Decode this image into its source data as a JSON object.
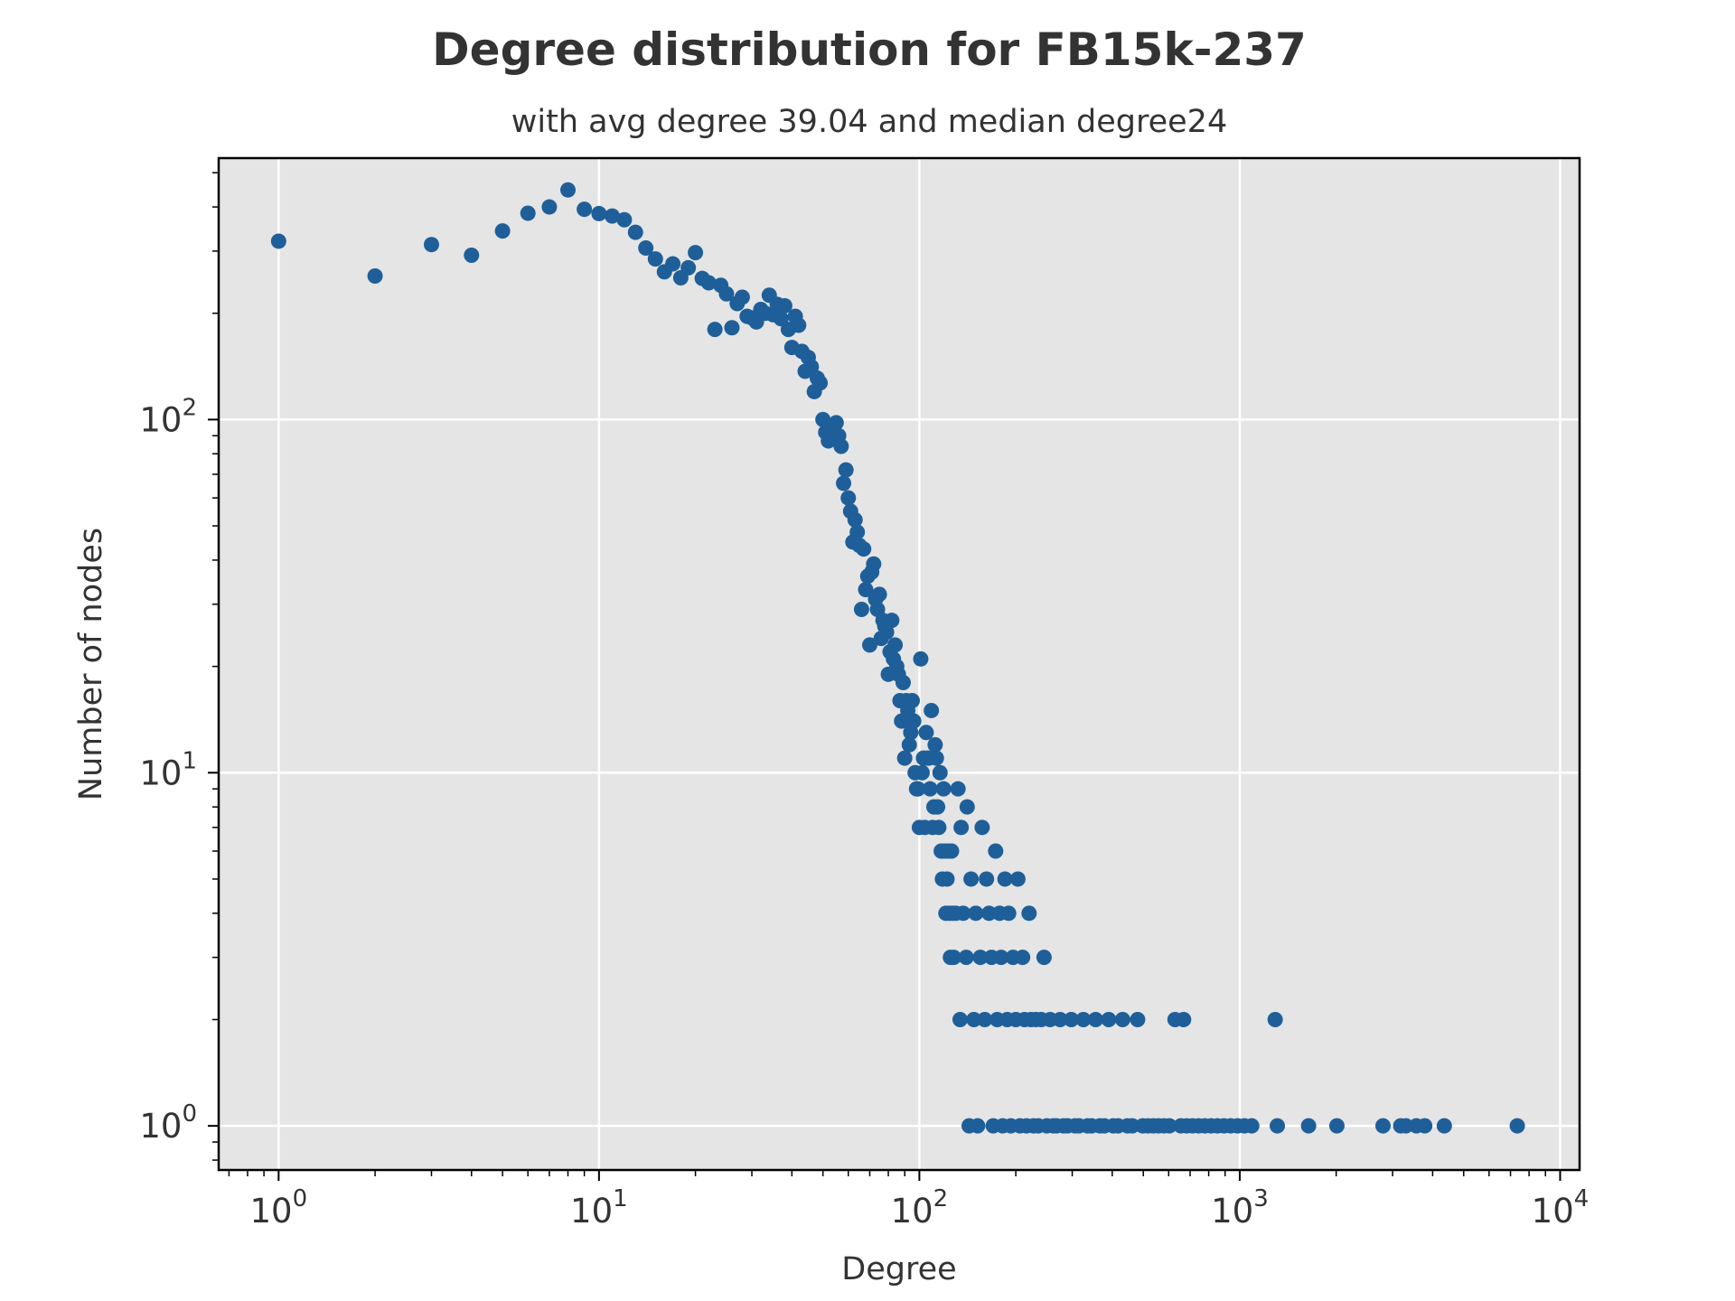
{
  "chart_data": {
    "type": "scatter",
    "title": "Degree distribution for FB15k-237",
    "subtitle": "with avg degree 39.04 and median degree24",
    "xlabel": "Degree",
    "ylabel": "Number of nodes",
    "xscale": "log",
    "yscale": "log",
    "xlim": [
      0.65,
      11500
    ],
    "ylim": [
      0.75,
      550
    ],
    "grid": true,
    "x_ticks": [
      {
        "base": "10",
        "exp": "0",
        "value": 1
      },
      {
        "base": "10",
        "exp": "1",
        "value": 10
      },
      {
        "base": "10",
        "exp": "2",
        "value": 100
      },
      {
        "base": "10",
        "exp": "3",
        "value": 1000
      },
      {
        "base": "10",
        "exp": "4",
        "value": 10000
      }
    ],
    "y_ticks": [
      {
        "base": "10",
        "exp": "0",
        "value": 1
      },
      {
        "base": "10",
        "exp": "1",
        "value": 10
      },
      {
        "base": "10",
        "exp": "2",
        "value": 100
      }
    ],
    "colors": {
      "points": "#1f5f99",
      "plot_background": "#e5e5e5",
      "grid": "#ffffff",
      "frame": "#000000"
    },
    "points": [
      [
        1,
        320
      ],
      [
        2,
        255
      ],
      [
        3,
        313
      ],
      [
        4,
        292
      ],
      [
        5,
        342
      ],
      [
        6,
        384
      ],
      [
        7,
        400
      ],
      [
        8,
        447
      ],
      [
        9,
        394
      ],
      [
        10,
        383
      ],
      [
        11,
        377
      ],
      [
        12,
        368
      ],
      [
        13,
        339
      ],
      [
        14,
        306
      ],
      [
        15,
        285
      ],
      [
        16,
        262
      ],
      [
        17,
        276
      ],
      [
        18,
        252
      ],
      [
        19,
        269
      ],
      [
        20,
        297
      ],
      [
        21,
        251
      ],
      [
        22,
        244
      ],
      [
        23,
        180
      ],
      [
        24,
        240
      ],
      [
        25,
        227
      ],
      [
        26,
        182
      ],
      [
        27,
        213
      ],
      [
        28,
        222
      ],
      [
        29,
        196
      ],
      [
        30,
        194
      ],
      [
        31,
        189
      ],
      [
        32,
        205
      ],
      [
        33,
        200
      ],
      [
        34,
        225
      ],
      [
        35,
        198
      ],
      [
        36,
        212
      ],
      [
        37,
        193
      ],
      [
        38,
        210
      ],
      [
        39,
        180
      ],
      [
        40,
        160
      ],
      [
        41,
        196
      ],
      [
        42,
        185
      ],
      [
        43,
        156
      ],
      [
        44,
        137
      ],
      [
        45,
        150
      ],
      [
        46,
        141
      ],
      [
        47,
        120
      ],
      [
        48,
        131
      ],
      [
        49,
        127
      ],
      [
        50,
        100
      ],
      [
        51,
        92
      ],
      [
        52,
        87
      ],
      [
        53,
        95
      ],
      [
        54,
        89
      ],
      [
        55,
        98
      ],
      [
        56,
        90
      ],
      [
        57,
        84
      ],
      [
        58,
        66
      ],
      [
        59,
        72
      ],
      [
        60,
        60
      ],
      [
        61,
        55
      ],
      [
        62,
        45
      ],
      [
        63,
        52
      ],
      [
        64,
        48
      ],
      [
        65,
        44
      ],
      [
        66,
        29
      ],
      [
        67,
        43
      ],
      [
        68,
        33
      ],
      [
        69,
        36
      ],
      [
        70,
        23
      ],
      [
        71,
        37
      ],
      [
        72,
        39
      ],
      [
        73,
        31
      ],
      [
        74,
        29
      ],
      [
        75,
        32
      ],
      [
        76,
        24
      ],
      [
        77,
        27
      ],
      [
        78,
        26
      ],
      [
        79,
        25
      ],
      [
        80,
        19
      ],
      [
        81,
        22
      ],
      [
        82,
        27
      ],
      [
        83,
        21
      ],
      [
        84,
        23
      ],
      [
        85,
        20
      ],
      [
        86,
        19
      ],
      [
        87,
        16
      ],
      [
        88,
        14
      ],
      [
        89,
        18
      ],
      [
        90,
        11
      ],
      [
        91,
        16
      ],
      [
        92,
        15
      ],
      [
        93,
        12
      ],
      [
        94,
        13
      ],
      [
        95,
        16
      ],
      [
        96,
        14
      ],
      [
        97,
        10
      ],
      [
        98,
        9
      ],
      [
        99,
        9
      ],
      [
        100,
        7
      ],
      [
        101,
        21
      ],
      [
        102,
        10
      ],
      [
        103,
        11
      ],
      [
        104,
        7
      ],
      [
        105,
        13
      ],
      [
        106,
        11
      ],
      [
        107,
        11
      ],
      [
        108,
        9
      ],
      [
        109,
        15
      ],
      [
        110,
        7
      ],
      [
        111,
        8
      ],
      [
        112,
        12
      ],
      [
        113,
        11
      ],
      [
        114,
        8
      ],
      [
        115,
        7
      ],
      [
        116,
        10
      ],
      [
        117,
        6
      ],
      [
        118,
        5
      ],
      [
        119,
        9
      ],
      [
        120,
        6
      ],
      [
        121,
        4
      ],
      [
        122,
        5
      ],
      [
        123,
        6
      ],
      [
        124,
        4
      ],
      [
        125,
        3
      ],
      [
        126,
        6
      ],
      [
        127,
        4
      ],
      [
        128,
        3
      ],
      [
        130,
        4
      ],
      [
        132,
        9
      ],
      [
        134,
        2
      ],
      [
        135,
        7
      ],
      [
        137,
        4
      ],
      [
        140,
        3
      ],
      [
        141,
        8
      ],
      [
        143,
        1
      ],
      [
        145,
        5
      ],
      [
        148,
        2
      ],
      [
        150,
        4
      ],
      [
        152,
        1
      ],
      [
        155,
        3
      ],
      [
        157,
        7
      ],
      [
        160,
        2
      ],
      [
        162,
        5
      ],
      [
        165,
        4
      ],
      [
        168,
        3
      ],
      [
        170,
        1
      ],
      [
        173,
        6
      ],
      [
        175,
        2
      ],
      [
        178,
        4
      ],
      [
        180,
        3
      ],
      [
        182,
        1
      ],
      [
        185,
        5
      ],
      [
        188,
        2
      ],
      [
        190,
        4
      ],
      [
        193,
        1
      ],
      [
        196,
        3
      ],
      [
        200,
        2
      ],
      [
        203,
        5
      ],
      [
        206,
        1
      ],
      [
        210,
        3
      ],
      [
        213,
        2
      ],
      [
        216,
        1
      ],
      [
        220,
        4
      ],
      [
        223,
        2
      ],
      [
        227,
        1
      ],
      [
        231,
        2
      ],
      [
        235,
        1
      ],
      [
        240,
        2
      ],
      [
        245,
        3
      ],
      [
        250,
        1
      ],
      [
        256,
        2
      ],
      [
        262,
        1
      ],
      [
        268,
        1
      ],
      [
        275,
        2
      ],
      [
        282,
        1
      ],
      [
        290,
        1
      ],
      [
        298,
        2
      ],
      [
        306,
        1
      ],
      [
        315,
        1
      ],
      [
        325,
        2
      ],
      [
        335,
        1
      ],
      [
        345,
        1
      ],
      [
        355,
        2
      ],
      [
        366,
        1
      ],
      [
        378,
        1
      ],
      [
        390,
        2
      ],
      [
        403,
        1
      ],
      [
        417,
        1
      ],
      [
        431,
        2
      ],
      [
        446,
        1
      ],
      [
        462,
        1
      ],
      [
        480,
        2
      ],
      [
        498,
        1
      ],
      [
        517,
        1
      ],
      [
        537,
        1
      ],
      [
        558,
        1
      ],
      [
        580,
        1
      ],
      [
        603,
        1
      ],
      [
        628,
        2
      ],
      [
        655,
        1
      ],
      [
        668,
        2
      ],
      [
        683,
        1
      ],
      [
        712,
        1
      ],
      [
        744,
        1
      ],
      [
        778,
        1
      ],
      [
        814,
        1
      ],
      [
        852,
        1
      ],
      [
        893,
        1
      ],
      [
        937,
        1
      ],
      [
        984,
        1
      ],
      [
        1034,
        1
      ],
      [
        1090,
        1
      ],
      [
        1290,
        2
      ],
      [
        1310,
        1
      ],
      [
        1640,
        1
      ],
      [
        2010,
        1
      ],
      [
        2800,
        1
      ],
      [
        3180,
        1
      ],
      [
        3300,
        1
      ],
      [
        3560,
        1
      ],
      [
        3780,
        1
      ],
      [
        4350,
        1
      ],
      [
        7350,
        1
      ]
    ]
  }
}
